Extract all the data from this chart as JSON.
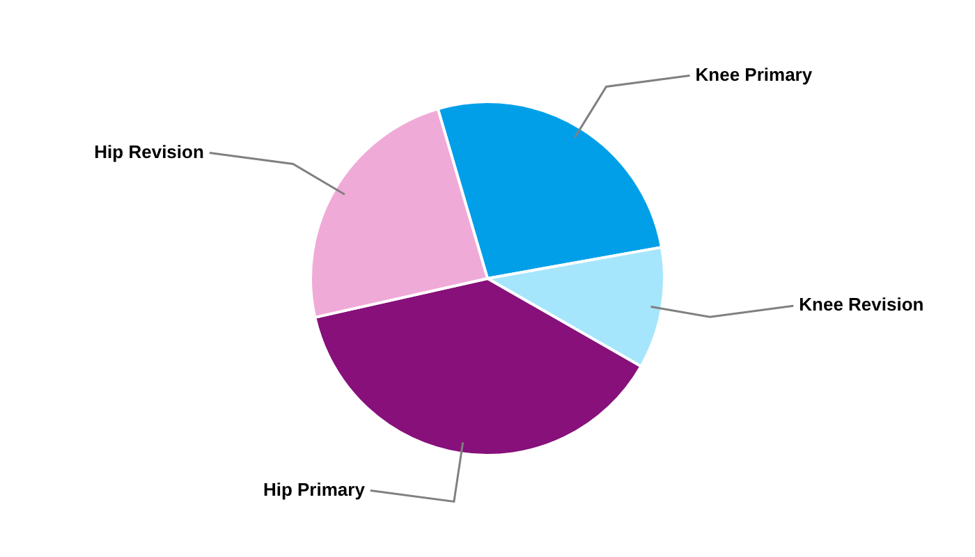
{
  "chart_data": {
    "type": "pie",
    "categories": [
      "Knee Primary",
      "Knee Revision",
      "Hip Primary",
      "Hip Revision"
    ],
    "values": [
      26.7,
      11.1,
      38.2,
      24.0
    ],
    "colors": [
      "#009fe8",
      "#a6e6fc",
      "#87107a",
      "#f0aad8"
    ],
    "legend": false
  }
}
